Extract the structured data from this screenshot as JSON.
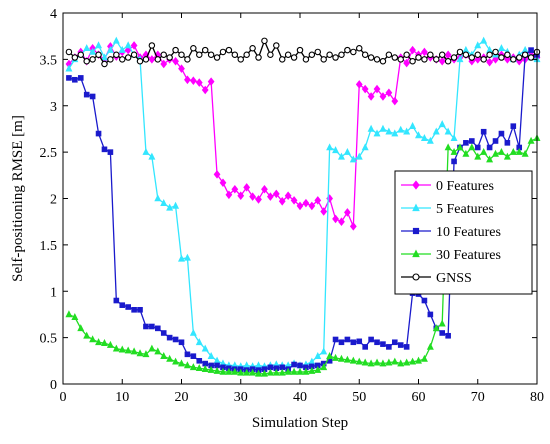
{
  "chart_data": {
    "type": "line",
    "title": "",
    "xlabel": "Simulation Step",
    "ylabel": "Self-positioning RMSE [m]",
    "xlim": [
      0,
      80
    ],
    "ylim": [
      0,
      4
    ],
    "x_ticks": [
      0,
      10,
      20,
      30,
      40,
      50,
      60,
      70,
      80
    ],
    "y_ticks": [
      0,
      0.5,
      1,
      1.5,
      2,
      2.5,
      3,
      3.5,
      4
    ],
    "x_tick_labels": [
      "0",
      "10",
      "20",
      "30",
      "40",
      "50",
      "60",
      "70",
      "80"
    ],
    "y_tick_labels": [
      "0",
      "0.5",
      "1",
      "1.5",
      "2",
      "2.5",
      "3",
      "3.5",
      "4"
    ],
    "grid": false,
    "legend_position": "right-middle",
    "x": [
      1,
      2,
      3,
      4,
      5,
      6,
      7,
      8,
      9,
      10,
      11,
      12,
      13,
      14,
      15,
      16,
      17,
      18,
      19,
      20,
      21,
      22,
      23,
      24,
      25,
      26,
      27,
      28,
      29,
      30,
      31,
      32,
      33,
      34,
      35,
      36,
      37,
      38,
      39,
      40,
      41,
      42,
      43,
      44,
      45,
      46,
      47,
      48,
      49,
      50,
      51,
      52,
      53,
      54,
      55,
      56,
      57,
      58,
      59,
      60,
      61,
      62,
      63,
      64,
      65,
      66,
      67,
      68,
      69,
      70,
      71,
      72,
      73,
      74,
      75,
      76,
      77,
      78,
      79,
      80
    ],
    "series": [
      {
        "name": "0 Features",
        "color": "#ff00ff",
        "marker": "diamond",
        "values": [
          3.45,
          3.52,
          3.58,
          3.48,
          3.62,
          3.55,
          3.5,
          3.64,
          3.53,
          3.58,
          3.6,
          3.65,
          3.52,
          3.55,
          3.5,
          3.55,
          3.45,
          3.5,
          3.48,
          3.4,
          3.28,
          3.27,
          3.25,
          3.17,
          3.26,
          2.26,
          2.17,
          2.04,
          2.1,
          2.03,
          2.12,
          2.02,
          1.99,
          2.1,
          2.02,
          2.05,
          1.97,
          2.03,
          1.98,
          1.92,
          1.95,
          1.92,
          1.98,
          1.86,
          2.0,
          1.78,
          1.75,
          1.85,
          1.7,
          3.23,
          3.18,
          3.1,
          3.18,
          3.1,
          3.14,
          3.05,
          3.52,
          3.46,
          3.6,
          3.55,
          3.58,
          3.52,
          3.5,
          3.48,
          3.55,
          3.5,
          3.52,
          3.55,
          3.48,
          3.5,
          3.52,
          3.47,
          3.5,
          3.55,
          3.5,
          3.52,
          3.48,
          3.5,
          3.55,
          3.52
        ]
      },
      {
        "name": "5 Features",
        "color": "#33e6ff",
        "marker": "triangle",
        "values": [
          3.4,
          3.5,
          3.55,
          3.62,
          3.58,
          3.65,
          3.52,
          3.6,
          3.7,
          3.6,
          3.65,
          3.55,
          3.5,
          2.5,
          2.45,
          2.0,
          1.95,
          1.9,
          1.92,
          1.35,
          1.36,
          0.55,
          0.45,
          0.38,
          0.3,
          0.25,
          0.22,
          0.2,
          0.2,
          0.19,
          0.2,
          0.19,
          0.2,
          0.19,
          0.2,
          0.21,
          0.2,
          0.2,
          0.22,
          0.2,
          0.21,
          0.24,
          0.3,
          0.35,
          2.55,
          2.52,
          2.45,
          2.5,
          2.42,
          2.45,
          2.55,
          2.75,
          2.7,
          2.75,
          2.72,
          2.7,
          2.74,
          2.72,
          2.78,
          2.68,
          2.65,
          2.62,
          2.72,
          2.8,
          2.72,
          2.65,
          3.5,
          3.6,
          3.55,
          3.65,
          3.7,
          3.6,
          3.55,
          3.62,
          3.58,
          3.5,
          3.55,
          3.6,
          3.52,
          3.5
        ]
      },
      {
        "name": "10 Features",
        "color": "#1a1acc",
        "marker": "square",
        "values": [
          3.3,
          3.28,
          3.3,
          3.12,
          3.1,
          2.7,
          2.53,
          2.5,
          0.9,
          0.85,
          0.83,
          0.8,
          0.8,
          0.62,
          0.62,
          0.6,
          0.55,
          0.5,
          0.48,
          0.45,
          0.32,
          0.3,
          0.25,
          0.22,
          0.2,
          0.2,
          0.18,
          0.17,
          0.16,
          0.16,
          0.15,
          0.16,
          0.15,
          0.16,
          0.18,
          0.17,
          0.18,
          0.16,
          0.21,
          0.2,
          0.18,
          0.19,
          0.2,
          0.22,
          0.25,
          0.48,
          0.45,
          0.48,
          0.45,
          0.46,
          0.4,
          0.48,
          0.45,
          0.43,
          0.4,
          0.45,
          0.42,
          0.4,
          0.98,
          0.97,
          0.9,
          0.75,
          0.6,
          0.55,
          0.52,
          2.4,
          2.55,
          2.6,
          2.62,
          2.55,
          2.72,
          2.55,
          2.62,
          2.7,
          2.6,
          2.78,
          2.55,
          3.55,
          3.6,
          3.55
        ]
      },
      {
        "name": "30 Features",
        "color": "#22dd22",
        "marker": "triangle",
        "values": [
          0.75,
          0.72,
          0.6,
          0.52,
          0.48,
          0.45,
          0.44,
          0.42,
          0.38,
          0.37,
          0.36,
          0.35,
          0.33,
          0.32,
          0.38,
          0.35,
          0.3,
          0.27,
          0.24,
          0.22,
          0.2,
          0.18,
          0.17,
          0.16,
          0.15,
          0.14,
          0.13,
          0.13,
          0.13,
          0.12,
          0.12,
          0.12,
          0.11,
          0.11,
          0.12,
          0.12,
          0.12,
          0.13,
          0.13,
          0.13,
          0.13,
          0.14,
          0.15,
          0.18,
          0.3,
          0.28,
          0.27,
          0.26,
          0.25,
          0.24,
          0.23,
          0.22,
          0.23,
          0.22,
          0.23,
          0.24,
          0.22,
          0.23,
          0.24,
          0.25,
          0.27,
          0.4,
          0.6,
          0.65,
          2.55,
          2.5,
          2.55,
          2.48,
          2.55,
          2.45,
          2.5,
          2.42,
          2.48,
          2.5,
          2.45,
          2.5,
          2.5,
          2.48,
          2.62,
          2.65
        ]
      },
      {
        "name": "GNSS",
        "color": "#000000",
        "marker": "circle",
        "values": [
          3.58,
          3.52,
          3.55,
          3.48,
          3.5,
          3.55,
          3.45,
          3.5,
          3.55,
          3.5,
          3.52,
          3.55,
          3.48,
          3.5,
          3.65,
          3.5,
          3.55,
          3.52,
          3.6,
          3.55,
          3.5,
          3.62,
          3.55,
          3.6,
          3.55,
          3.52,
          3.58,
          3.6,
          3.55,
          3.5,
          3.55,
          3.62,
          3.52,
          3.7,
          3.55,
          3.65,
          3.5,
          3.55,
          3.52,
          3.6,
          3.5,
          3.55,
          3.58,
          3.5,
          3.55,
          3.52,
          3.55,
          3.6,
          3.58,
          3.62,
          3.55,
          3.52,
          3.5,
          3.48,
          3.55,
          3.52,
          3.5,
          3.55,
          3.48,
          3.52,
          3.5,
          3.55,
          3.5,
          3.55,
          3.48,
          3.52,
          3.58,
          3.55,
          3.52,
          3.55,
          3.5,
          3.55,
          3.58,
          3.52,
          3.55,
          3.5,
          3.52,
          3.55,
          3.52,
          3.58
        ]
      }
    ]
  }
}
